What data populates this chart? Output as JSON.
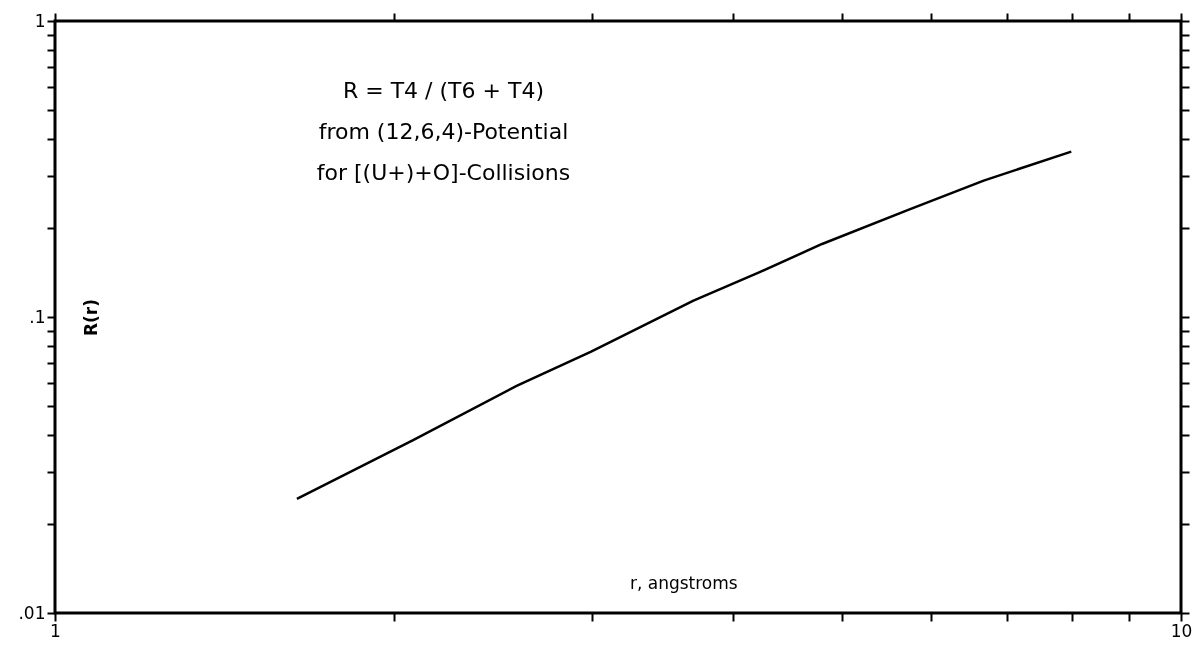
{
  "chart_data": {
    "type": "line",
    "xlabel": "r, angstroms",
    "ylabel": "R(r)",
    "log": "xy",
    "grid": false,
    "marker": "none",
    "line_style": "solid",
    "annotations": [
      "R = T4 / (T6 + T4)",
      "from (12,6,4)-Potential",
      "for [(U+)+O]-Collisions"
    ],
    "xlim": [
      1,
      10
    ],
    "ylim": [
      0.01,
      1
    ],
    "xticks": [
      1,
      {
        "value": 2,
        "label": null
      },
      {
        "value": 3,
        "label": null
      },
      {
        "value": 4,
        "label": null
      },
      {
        "value": 5,
        "label": null
      },
      {
        "value": 6,
        "label": null
      },
      {
        "value": 7,
        "label": null
      },
      {
        "value": 8,
        "label": null
      },
      {
        "value": 9,
        "label": null
      },
      10
    ],
    "yticks": [
      {
        "value": 0.01,
        "label": ".01"
      },
      {
        "value": 0.02,
        "label": null
      },
      {
        "value": 0.03,
        "label": null
      },
      {
        "value": 0.04,
        "label": null
      },
      {
        "value": 0.05,
        "label": null
      },
      {
        "value": 0.06,
        "label": null
      },
      {
        "value": 0.07,
        "label": null
      },
      {
        "value": 0.08,
        "label": null
      },
      {
        "value": 0.09,
        "label": null
      },
      {
        "value": 0.1,
        "label": ".1"
      },
      {
        "value": 0.2,
        "label": null
      },
      {
        "value": 0.3,
        "label": null
      },
      {
        "value": 0.4,
        "label": null
      },
      {
        "value": 0.5,
        "label": null
      },
      {
        "value": 0.6,
        "label": null
      },
      {
        "value": 0.7,
        "label": null
      },
      {
        "value": 0.8,
        "label": null
      },
      {
        "value": 0.9,
        "label": null
      },
      1
    ],
    "series": [
      {
        "color": "#000000",
        "x": [
          1.64,
          2.08,
          2.57,
          2.99,
          3.69,
          4.23,
          4.8,
          5.74,
          6.68,
          7.99
        ],
        "values": [
          0.0243,
          0.0384,
          0.0585,
          0.0762,
          0.1135,
          0.142,
          0.1765,
          0.231,
          0.289,
          0.362
        ]
      }
    ]
  }
}
